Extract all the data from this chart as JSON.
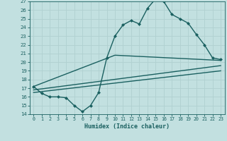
{
  "xlabel": "Humidex (Indice chaleur)",
  "background_color": "#c2e0e0",
  "grid_color": "#b0d0d0",
  "line_color": "#1a6060",
  "xlim": [
    -0.5,
    23.5
  ],
  "ylim": [
    14,
    27
  ],
  "xticks": [
    0,
    1,
    2,
    3,
    4,
    5,
    6,
    7,
    8,
    9,
    10,
    11,
    12,
    13,
    14,
    15,
    16,
    17,
    18,
    19,
    20,
    21,
    22,
    23
  ],
  "yticks": [
    14,
    15,
    16,
    17,
    18,
    19,
    20,
    21,
    22,
    23,
    24,
    25,
    26,
    27
  ],
  "line1_x": [
    0,
    1,
    2,
    3,
    4,
    5,
    6,
    7,
    8,
    9,
    10,
    11,
    12,
    13,
    14,
    15,
    16,
    17,
    18,
    19,
    20,
    21,
    22,
    23
  ],
  "line1_y": [
    17.2,
    16.4,
    16.0,
    16.0,
    15.9,
    15.0,
    14.3,
    15.0,
    16.5,
    20.5,
    23.0,
    24.3,
    24.8,
    24.4,
    26.2,
    27.3,
    27.0,
    25.5,
    25.0,
    24.5,
    23.2,
    22.0,
    20.5,
    20.3
  ],
  "line2_x": [
    0,
    10,
    23
  ],
  "line2_y": [
    17.2,
    20.8,
    20.2
  ],
  "line3_x": [
    0,
    23
  ],
  "line3_y": [
    16.8,
    19.6
  ],
  "line4_x": [
    0,
    23
  ],
  "line4_y": [
    16.5,
    19.0
  ],
  "markersize": 2.5,
  "linewidth": 1.0
}
